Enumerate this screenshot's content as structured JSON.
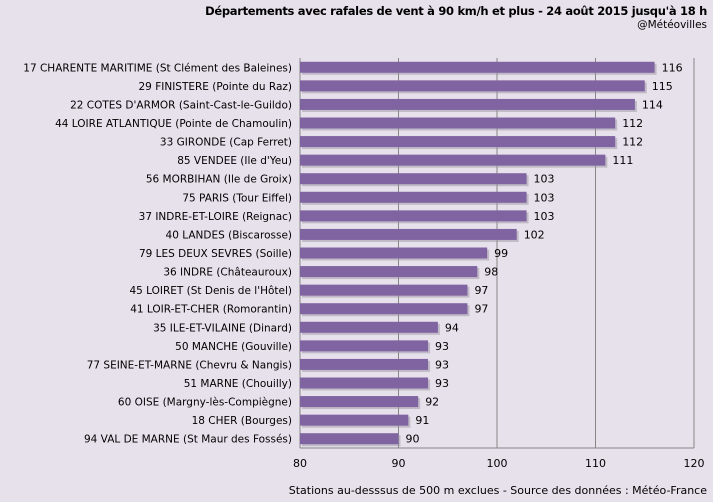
{
  "chart_data": {
    "type": "bar",
    "orientation": "horizontal",
    "title": "Départements avec rafales de vent à 90 km/h et plus - 24 août 2015 jusqu'à 18 h",
    "credit": "@Météovilles",
    "footer": "Stations au-desssus de 500 m exclues - Source des données : Météo-France",
    "xlim": [
      80,
      120
    ],
    "xticks": [
      "80",
      "90",
      "100",
      "110",
      "120"
    ],
    "bar_color": "#8064a2",
    "categories": [
      "17 CHARENTE MARITIME (St Clément des Baleines)",
      "29 FINISTERE (Pointe du Raz)",
      "22 COTES D'ARMOR (Saint-Cast-le-Guildo)",
      "44 LOIRE ATLANTIQUE (Pointe de Chamoulin)",
      "33 GIRONDE (Cap Ferret)",
      "85 VENDEE (Ile d'Yeu)",
      "56 MORBIHAN (Ile de Groix)",
      "75 PARIS (Tour Eiffel)",
      "37 INDRE-ET-LOIRE (Reignac)",
      "40 LANDES (Biscarosse)",
      "79 LES DEUX SEVRES (Soille)",
      "36 INDRE (Châteauroux)",
      "45 LOIRET (St Denis de l'Hôtel)",
      "41 LOIR-ET-CHER (Romorantin)",
      "35 ILE-ET-VILAINE (Dinard)",
      "50 MANCHE (Gouville)",
      "77 SEINE-ET-MARNE (Chevru & Nangis)",
      "51 MARNE (Chouilly)",
      "60 OISE (Margny-lès-Compiègne)",
      "18 CHER (Bourges)",
      "94 VAL DE MARNE (St Maur des Fossés)"
    ],
    "values": [
      116,
      115,
      114,
      112,
      112,
      111,
      103,
      103,
      103,
      102,
      99,
      98,
      97,
      97,
      94,
      93,
      93,
      93,
      92,
      91,
      90
    ]
  }
}
